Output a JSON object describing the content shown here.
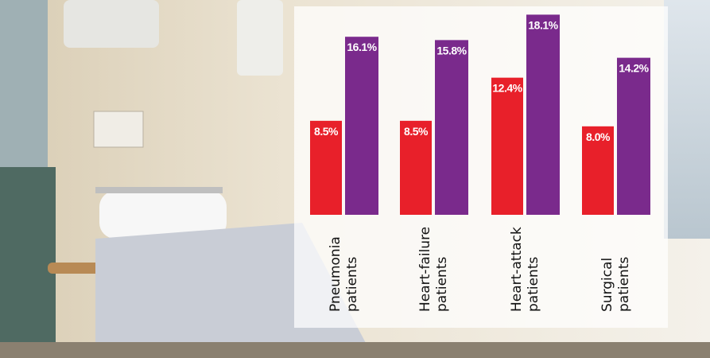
{
  "chart_data": {
    "type": "bar",
    "categories": [
      "Pneumonia patients",
      "Heart-failure patients",
      "Heart-attack patients",
      "Surgical patients"
    ],
    "series": [
      {
        "color": "#e8202a",
        "values": [
          8.5,
          8.5,
          12.4,
          8.0
        ],
        "value_labels": [
          "8.5%",
          "8.5%",
          "12.4%",
          "8.0%"
        ]
      },
      {
        "color": "#7a2a8c",
        "values": [
          16.1,
          15.8,
          18.1,
          14.2
        ],
        "value_labels": [
          "16.1%",
          "15.8%",
          "18.1%",
          "14.2%"
        ]
      }
    ]
  }
}
